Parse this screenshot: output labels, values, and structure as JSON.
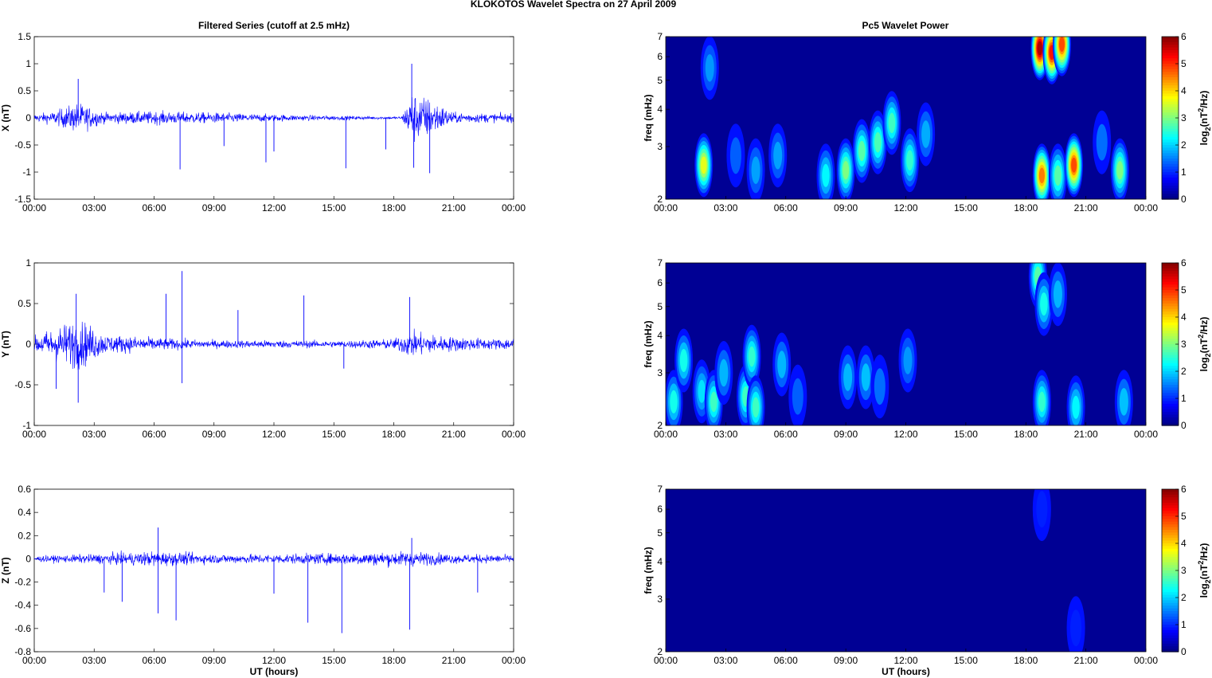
{
  "figure_title": "KLOKOTOS Wavelet Spectra on 27 April     2009",
  "left_title": "Filtered Series (cutoff at 2.5 mHz)",
  "right_title": "Pc5 Wavelet Power",
  "xlabel": "UT (hours)",
  "colorbar_label": "log2(nT^2/Hz)",
  "colorbar_label_parts": {
    "base": "log",
    "sub": "2",
    "mid": "(nT",
    "sup": "2",
    "end": "/Hz)"
  },
  "time_ticks": [
    "00:00",
    "03:00",
    "06:00",
    "09:00",
    "12:00",
    "15:00",
    "18:00",
    "21:00",
    "00:00"
  ],
  "colors": {
    "trace": "#0000ff",
    "jet_low": "#00008f",
    "jet_high": "#800000"
  },
  "chart_data": [
    {
      "type": "line",
      "component": "X",
      "ylabel": "X (nT)",
      "ylim": [
        -1.5,
        1.5
      ],
      "yticks": [
        "1.5",
        "1",
        "0.5",
        "0",
        "-0.5",
        "-1",
        "-1.5"
      ],
      "xlim_hours": [
        0,
        24
      ],
      "amplitude_envelope": [
        {
          "t": 0.0,
          "a": 0.08
        },
        {
          "t": 1.0,
          "a": 0.15
        },
        {
          "t": 2.2,
          "a": 0.35
        },
        {
          "t": 3.5,
          "a": 0.12
        },
        {
          "t": 6.0,
          "a": 0.15
        },
        {
          "t": 9.0,
          "a": 0.12
        },
        {
          "t": 12.0,
          "a": 0.08
        },
        {
          "t": 15.0,
          "a": 0.05
        },
        {
          "t": 18.4,
          "a": 0.03
        },
        {
          "t": 18.9,
          "a": 0.6
        },
        {
          "t": 19.8,
          "a": 0.45
        },
        {
          "t": 21.0,
          "a": 0.12
        },
        {
          "t": 23.0,
          "a": 0.1
        },
        {
          "t": 24.0,
          "a": 0.1
        }
      ],
      "spikes": [
        {
          "t": 2.2,
          "v": 0.72
        },
        {
          "t": 7.3,
          "v": -0.95
        },
        {
          "t": 11.6,
          "v": -0.82
        },
        {
          "t": 12.0,
          "v": -0.62
        },
        {
          "t": 15.6,
          "v": -0.93
        },
        {
          "t": 18.9,
          "v": 1.0
        },
        {
          "t": 19.0,
          "v": -0.92
        },
        {
          "t": 19.8,
          "v": -1.02
        },
        {
          "t": 17.6,
          "v": -0.58
        },
        {
          "t": 9.5,
          "v": -0.52
        }
      ]
    },
    {
      "type": "line",
      "component": "Y",
      "ylabel": "Y (nT)",
      "ylim": [
        -1,
        1
      ],
      "yticks": [
        "1",
        "0.5",
        "0",
        "-0.5",
        "-1"
      ],
      "xlim_hours": [
        0,
        24
      ],
      "amplitude_envelope": [
        {
          "t": 0.0,
          "a": 0.12
        },
        {
          "t": 1.0,
          "a": 0.25
        },
        {
          "t": 2.2,
          "a": 0.4
        },
        {
          "t": 3.5,
          "a": 0.15
        },
        {
          "t": 6.0,
          "a": 0.1
        },
        {
          "t": 8.5,
          "a": 0.06
        },
        {
          "t": 12.0,
          "a": 0.06
        },
        {
          "t": 15.0,
          "a": 0.05
        },
        {
          "t": 18.0,
          "a": 0.08
        },
        {
          "t": 18.8,
          "a": 0.2
        },
        {
          "t": 20.5,
          "a": 0.12
        },
        {
          "t": 23.0,
          "a": 0.08
        },
        {
          "t": 24.0,
          "a": 0.1
        }
      ],
      "spikes": [
        {
          "t": 2.2,
          "v": -0.72
        },
        {
          "t": 2.1,
          "v": 0.62
        },
        {
          "t": 7.4,
          "v": 0.9
        },
        {
          "t": 7.4,
          "v": -0.48
        },
        {
          "t": 6.6,
          "v": 0.62
        },
        {
          "t": 13.5,
          "v": 0.6
        },
        {
          "t": 18.8,
          "v": 0.58
        },
        {
          "t": 1.1,
          "v": -0.55
        },
        {
          "t": 10.2,
          "v": 0.42
        },
        {
          "t": 15.5,
          "v": -0.3
        }
      ]
    },
    {
      "type": "line",
      "component": "Z",
      "ylabel": "Z (nT)",
      "ylim": [
        -0.8,
        0.6
      ],
      "yticks": [
        "0.6",
        "0.4",
        "0.2",
        "0",
        "-0.2",
        "-0.4",
        "-0.6",
        "-0.8"
      ],
      "xlim_hours": [
        0,
        24
      ],
      "amplitude_envelope": [
        {
          "t": 0.0,
          "a": 0.03
        },
        {
          "t": 3.0,
          "a": 0.05
        },
        {
          "t": 6.0,
          "a": 0.08
        },
        {
          "t": 9.0,
          "a": 0.05
        },
        {
          "t": 12.0,
          "a": 0.05
        },
        {
          "t": 15.0,
          "a": 0.06
        },
        {
          "t": 18.8,
          "a": 0.08
        },
        {
          "t": 21.0,
          "a": 0.05
        },
        {
          "t": 24.0,
          "a": 0.04
        }
      ],
      "spikes": [
        {
          "t": 6.2,
          "v": 0.27
        },
        {
          "t": 6.2,
          "v": -0.47
        },
        {
          "t": 7.1,
          "v": -0.53
        },
        {
          "t": 4.4,
          "v": -0.37
        },
        {
          "t": 3.5,
          "v": -0.29
        },
        {
          "t": 13.7,
          "v": -0.55
        },
        {
          "t": 15.4,
          "v": -0.64
        },
        {
          "t": 18.8,
          "v": -0.61
        },
        {
          "t": 18.9,
          "v": 0.18
        },
        {
          "t": 22.2,
          "v": -0.29
        },
        {
          "t": 12.0,
          "v": -0.3
        }
      ]
    },
    {
      "type": "heatmap",
      "component": "X",
      "ylabel": "freq (mHz)",
      "yscale": "log",
      "ylim": [
        2,
        7
      ],
      "yticks": [
        "7",
        "6",
        "5",
        "4",
        "3",
        "2"
      ],
      "clim": [
        0,
        6
      ],
      "cticks": [
        "6",
        "5",
        "4",
        "3",
        "2",
        "1",
        "0"
      ],
      "blobs": [
        {
          "t": 1.9,
          "f": 2.6,
          "p": 3.5
        },
        {
          "t": 2.2,
          "f": 5.5,
          "p": 1.3
        },
        {
          "t": 3.5,
          "f": 2.8,
          "p": 1.0
        },
        {
          "t": 4.5,
          "f": 2.5,
          "p": 1.4
        },
        {
          "t": 5.6,
          "f": 2.8,
          "p": 1.4
        },
        {
          "t": 8.0,
          "f": 2.4,
          "p": 2.0
        },
        {
          "t": 9.0,
          "f": 2.5,
          "p": 2.8
        },
        {
          "t": 9.8,
          "f": 2.9,
          "p": 2.6
        },
        {
          "t": 10.6,
          "f": 3.1,
          "p": 2.5
        },
        {
          "t": 11.3,
          "f": 3.6,
          "p": 2.4
        },
        {
          "t": 12.2,
          "f": 2.7,
          "p": 2.3
        },
        {
          "t": 13.0,
          "f": 3.3,
          "p": 1.5
        },
        {
          "t": 18.7,
          "f": 6.4,
          "p": 5.8
        },
        {
          "t": 19.3,
          "f": 6.2,
          "p": 5.2
        },
        {
          "t": 19.8,
          "f": 6.6,
          "p": 4.8
        },
        {
          "t": 18.8,
          "f": 2.4,
          "p": 4.5
        },
        {
          "t": 19.6,
          "f": 2.4,
          "p": 2.6
        },
        {
          "t": 20.4,
          "f": 2.6,
          "p": 4.8
        },
        {
          "t": 21.8,
          "f": 3.1,
          "p": 1.2
        },
        {
          "t": 22.7,
          "f": 2.5,
          "p": 2.8
        }
      ]
    },
    {
      "type": "heatmap",
      "component": "Y",
      "ylabel": "freq (mHz)",
      "yscale": "log",
      "ylim": [
        2,
        7
      ],
      "yticks": [
        "7",
        "6",
        "5",
        "4",
        "3",
        "2"
      ],
      "clim": [
        0,
        6
      ],
      "cticks": [
        "6",
        "5",
        "4",
        "3",
        "2",
        "1",
        "0"
      ],
      "blobs": [
        {
          "t": 0.4,
          "f": 2.4,
          "p": 2.2
        },
        {
          "t": 0.9,
          "f": 3.3,
          "p": 2.2
        },
        {
          "t": 1.8,
          "f": 2.6,
          "p": 1.8
        },
        {
          "t": 2.4,
          "f": 2.4,
          "p": 2.4
        },
        {
          "t": 2.9,
          "f": 3.0,
          "p": 1.6
        },
        {
          "t": 4.0,
          "f": 2.5,
          "p": 2.4
        },
        {
          "t": 4.3,
          "f": 3.4,
          "p": 2.3
        },
        {
          "t": 4.5,
          "f": 2.3,
          "p": 2.4
        },
        {
          "t": 5.8,
          "f": 3.2,
          "p": 1.6
        },
        {
          "t": 6.6,
          "f": 2.5,
          "p": 1.0
        },
        {
          "t": 9.1,
          "f": 2.9,
          "p": 1.6
        },
        {
          "t": 10.0,
          "f": 2.9,
          "p": 1.7
        },
        {
          "t": 10.7,
          "f": 2.7,
          "p": 1.2
        },
        {
          "t": 12.1,
          "f": 3.3,
          "p": 1.3
        },
        {
          "t": 18.6,
          "f": 6.3,
          "p": 2.6
        },
        {
          "t": 18.9,
          "f": 5.1,
          "p": 2.2
        },
        {
          "t": 18.8,
          "f": 2.4,
          "p": 2.3
        },
        {
          "t": 19.6,
          "f": 5.5,
          "p": 1.6
        },
        {
          "t": 20.5,
          "f": 2.3,
          "p": 2.0
        },
        {
          "t": 22.9,
          "f": 2.4,
          "p": 1.7
        }
      ]
    },
    {
      "type": "heatmap",
      "component": "Z",
      "ylabel": "freq (mHz)",
      "yscale": "log",
      "ylim": [
        2,
        7
      ],
      "yticks": [
        "7",
        "6",
        "5",
        "4",
        "3",
        "2"
      ],
      "clim": [
        0,
        6
      ],
      "cticks": [
        "6",
        "5",
        "4",
        "3",
        "2",
        "1",
        "0"
      ],
      "blobs": [
        {
          "t": 18.8,
          "f": 6.0,
          "p": 0.2
        },
        {
          "t": 20.5,
          "f": 2.4,
          "p": 0.2
        }
      ]
    }
  ]
}
